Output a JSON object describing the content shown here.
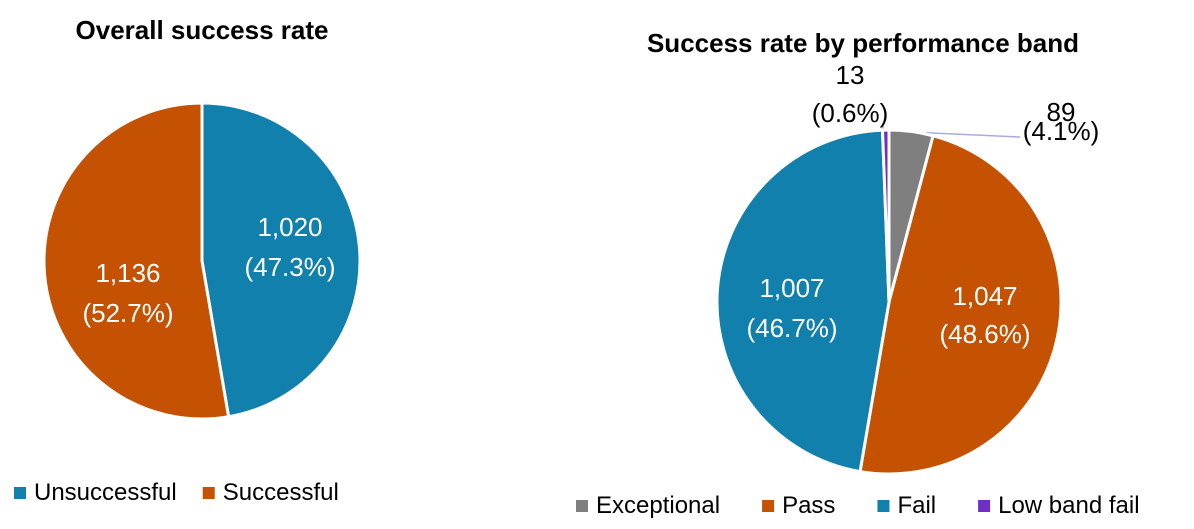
{
  "chart_data": [
    {
      "type": "pie",
      "title": "Overall success rate",
      "start_side": "top",
      "direction": "clockwise",
      "legend_position": "bottom-left",
      "slices": [
        {
          "name": "Unsuccessful",
          "value": 1020,
          "percent_label": "(47.3%)",
          "value_label": "1,020",
          "color": "#1180AC",
          "label_color": "#FFFFFF"
        },
        {
          "name": "Successful",
          "value": 1136,
          "percent_label": "(52.7%)",
          "value_label": "1,136",
          "color": "#C55102",
          "label_color": "#FFFFFF"
        }
      ]
    },
    {
      "type": "pie",
      "title": "Success rate by performance band",
      "start_side": "top",
      "direction": "clockwise",
      "legend_position": "bottom",
      "slices": [
        {
          "name": "Exceptional",
          "value": 89,
          "percent_label": "(4.1%)",
          "value_label": "89",
          "color": "#7F7F7F",
          "label_color": "#000000"
        },
        {
          "name": "Pass",
          "value": 1047,
          "percent_label": "(48.6%)",
          "value_label": "1,047",
          "color": "#C55102",
          "label_color": "#FFFFFF"
        },
        {
          "name": "Fail",
          "value": 1007,
          "percent_label": "(46.7%)",
          "value_label": "1,007",
          "color": "#1180AC",
          "label_color": "#FFFFFF"
        },
        {
          "name": "Low band fail",
          "value": 13,
          "percent_label": "(0.6%)",
          "value_label": "13",
          "color": "#6F2FC6",
          "label_color": "#000000"
        }
      ]
    }
  ]
}
